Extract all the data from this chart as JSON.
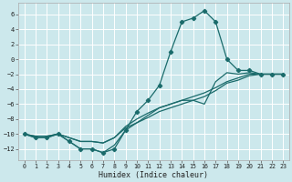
{
  "xlabel": "Humidex (Indice chaleur)",
  "xlim": [
    -0.5,
    23.5
  ],
  "ylim": [
    -13.5,
    7.5
  ],
  "xticks": [
    0,
    1,
    2,
    3,
    4,
    5,
    6,
    7,
    8,
    9,
    10,
    11,
    12,
    13,
    14,
    15,
    16,
    17,
    18,
    19,
    20,
    21,
    22,
    23
  ],
  "yticks": [
    -12,
    -10,
    -8,
    -6,
    -4,
    -2,
    0,
    2,
    4,
    6
  ],
  "bg_color": "#cce8ec",
  "line_color": "#1a6b6b",
  "grid_color": "#ffffff",
  "curve_main_x": [
    0,
    1,
    2,
    3,
    4,
    5,
    6,
    7,
    8,
    9,
    10,
    11,
    12,
    13,
    14,
    15,
    16,
    17,
    18,
    19,
    20,
    21,
    22,
    23
  ],
  "curve_main_y": [
    -10,
    -10.5,
    -10.5,
    -10,
    -11,
    -12,
    -12,
    -12.5,
    -12,
    -9.5,
    -7,
    -5.5,
    -3.5,
    1,
    5,
    5.5,
    6.5,
    5,
    0,
    -1.5,
    -1.5,
    -2,
    -2,
    -2
  ],
  "curve2_x": [
    0,
    1,
    2,
    3,
    4,
    5,
    6,
    7,
    8,
    9,
    10,
    11,
    12,
    13,
    14,
    15,
    16,
    17,
    18,
    19,
    20,
    21,
    22,
    23
  ],
  "curve2_y": [
    -10,
    -10.5,
    -10.5,
    -10,
    -11,
    -12,
    -12,
    -12.5,
    -11.5,
    -9.5,
    -8.5,
    -7.5,
    -6.5,
    -6.0,
    -5.5,
    -5.5,
    -6.0,
    -3.0,
    -1.8,
    -2,
    -1.8,
    -2,
    -2,
    -2
  ],
  "curve3_x": [
    0,
    1,
    2,
    3,
    4,
    5,
    6,
    7,
    8,
    9,
    10,
    11,
    12,
    13,
    14,
    15,
    16,
    17,
    18,
    19,
    20,
    21,
    22,
    23
  ],
  "curve3_y": [
    -10,
    -10.3,
    -10.3,
    -10,
    -10.5,
    -11,
    -11,
    -11.2,
    -10.5,
    -9,
    -8,
    -7.2,
    -6.5,
    -6,
    -5.5,
    -5,
    -4.5,
    -3.8,
    -3,
    -2.5,
    -2,
    -2,
    -2,
    -2
  ],
  "curve4_x": [
    0,
    1,
    2,
    3,
    4,
    5,
    6,
    7,
    8,
    9,
    10,
    11,
    12,
    13,
    14,
    15,
    16,
    17,
    18,
    19,
    20,
    21,
    22,
    23
  ],
  "curve4_y": [
    -10,
    -10.3,
    -10.3,
    -10,
    -10.5,
    -11,
    -11,
    -11.2,
    -10.5,
    -9.2,
    -8.5,
    -7.8,
    -7,
    -6.5,
    -6,
    -5.5,
    -5,
    -4.2,
    -3.2,
    -2.8,
    -2.2,
    -2,
    -2,
    -2
  ]
}
